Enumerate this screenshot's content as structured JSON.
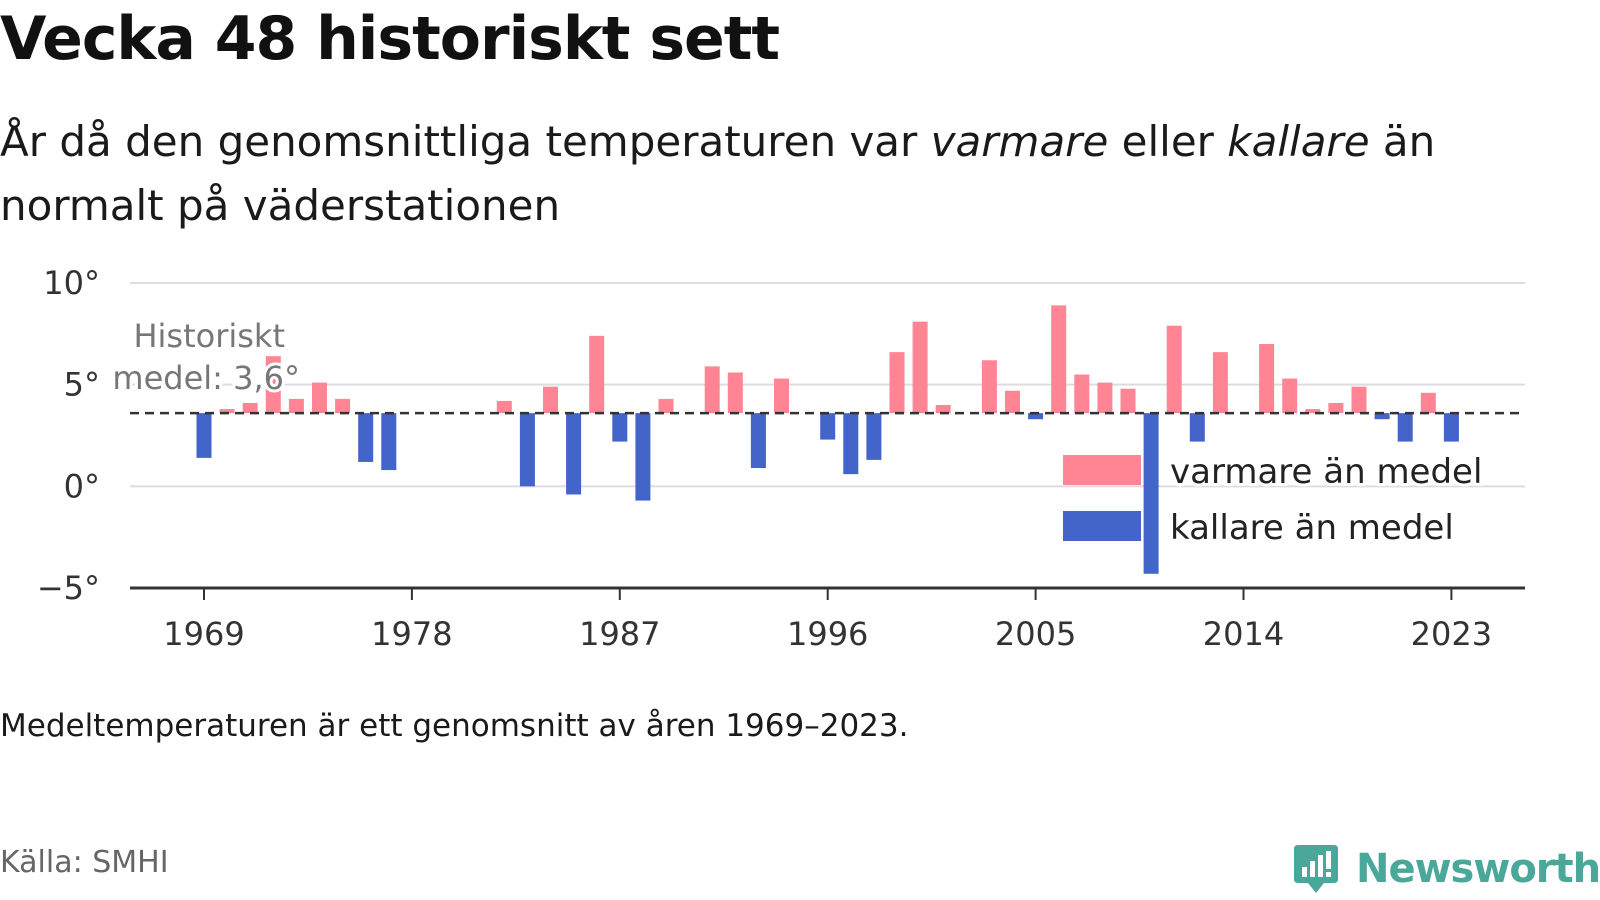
{
  "header": {
    "title": "Vecka 48 historiskt sett",
    "subtitle_1": "År då den genomsnittliga temperaturen var ",
    "subtitle_warm": "varmare",
    "subtitle_2": " eller ",
    "subtitle_cold": "kallare",
    "subtitle_3": " än normalt på väderstationen"
  },
  "footer": {
    "note": "Medeltemperaturen är ett genomsnitt av åren 1969–2023.",
    "source": "Källa: SMHI",
    "brand": "Newsworthy",
    "brand_icon": "newsworthy-logo-icon"
  },
  "colors": {
    "warm": "#ff8595",
    "cold": "#4364c8",
    "brand": "#4aa89b",
    "grid": "#dddddd",
    "axis": "#333333"
  },
  "chart_data": {
    "type": "bar",
    "x": [
      1969,
      1970,
      1971,
      1972,
      1973,
      1974,
      1975,
      1976,
      1977,
      1978,
      1979,
      1980,
      1981,
      1982,
      1983,
      1984,
      1985,
      1986,
      1987,
      1988,
      1989,
      1990,
      1991,
      1992,
      1993,
      1994,
      1995,
      1996,
      1997,
      1998,
      1999,
      2000,
      2001,
      2002,
      2003,
      2004,
      2005,
      2006,
      2007,
      2008,
      2009,
      2010,
      2011,
      2012,
      2013,
      2014,
      2015,
      2016,
      2017,
      2018,
      2019,
      2020,
      2021,
      2022,
      2023
    ],
    "values": [
      1.4,
      3.8,
      4.1,
      6.4,
      4.3,
      5.1,
      4.3,
      1.2,
      0.8,
      null,
      null,
      null,
      null,
      4.2,
      0.0,
      4.9,
      -0.4,
      7.4,
      2.2,
      -0.7,
      4.3,
      null,
      5.9,
      5.6,
      0.9,
      5.3,
      null,
      2.3,
      0.6,
      1.3,
      6.6,
      8.1,
      4.0,
      null,
      6.2,
      4.7,
      3.3,
      8.9,
      5.5,
      5.1,
      4.8,
      -4.3,
      7.9,
      2.2,
      6.6,
      null,
      7.0,
      5.3,
      3.8,
      4.1,
      4.9,
      3.3,
      2.2,
      4.6,
      2.2
    ],
    "reference_line": 3.6,
    "reference_label_1": "Historiskt",
    "reference_label_2": "medel: 3,6°",
    "ylim": [
      -5,
      10
    ],
    "y_ticks": [
      -5,
      0,
      5,
      10
    ],
    "y_tick_labels": [
      "−5°",
      "0°",
      "5°",
      "10°"
    ],
    "x_ticks": [
      1969,
      1978,
      1987,
      1996,
      2005,
      2014,
      2023
    ],
    "x_tick_labels": [
      "1969",
      "1978",
      "1987",
      "1996",
      "2005",
      "2014",
      "2023"
    ],
    "xlabel": "",
    "ylabel": "",
    "grid": true,
    "series": [
      {
        "name": "varmare än medel"
      },
      {
        "name": "kallare än medel"
      }
    ],
    "legend_position": "right"
  }
}
